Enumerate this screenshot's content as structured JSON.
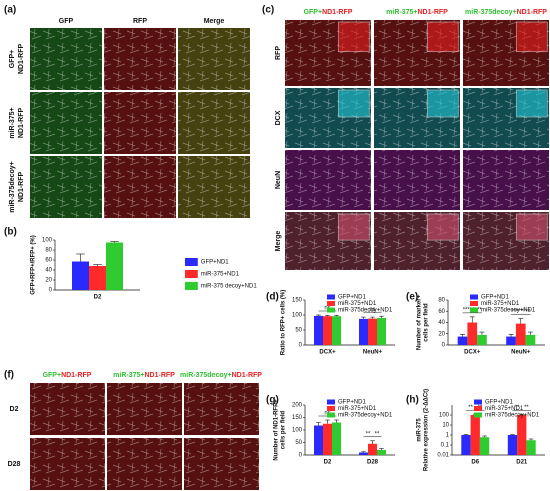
{
  "figure": {
    "a": {
      "label": "(a)",
      "columns": [
        "GFP",
        "RFP",
        "Merge"
      ],
      "rows": [
        [
          "GFP+",
          "ND1-RFP"
        ],
        [
          "miR-375+",
          "ND1-RFP"
        ],
        [
          "miR-375decoy+",
          "ND1-RFP"
        ]
      ]
    },
    "c": {
      "label": "(c)",
      "columns": [
        [
          "GFP+",
          "ND1-RFP"
        ],
        [
          "miR-375+",
          "ND1-RFP"
        ],
        [
          "miR-375decoy+",
          "ND1-RFP"
        ]
      ],
      "rows": [
        "RFP",
        "DCX",
        "NeuN",
        "Merge"
      ]
    },
    "f": {
      "label": "(f)",
      "columns": [
        [
          "GFP+",
          "ND1-RFP"
        ],
        [
          "miR-375+",
          "ND1-RFP"
        ],
        [
          "miR-375decoy+",
          "ND1-RFP"
        ]
      ],
      "rows": [
        "D2",
        "D28"
      ]
    }
  },
  "chart_data": [
    {
      "type": "bar",
      "label": "(b)",
      "ylabel": [
        "GFP+RFP+/RFP+ (%)"
      ],
      "categories": [
        "D2"
      ],
      "legend": "right",
      "ylim": [
        0,
        100
      ],
      "yticks": [
        0,
        20,
        40,
        60,
        80,
        100
      ],
      "series": [
        {
          "name": "GFP+ND1",
          "color": "#2a2aff",
          "values": [
            57
          ],
          "errors": [
            15
          ]
        },
        {
          "name": "miR-375+ND1",
          "color": "#ff2a2a",
          "values": [
            48
          ],
          "errors": [
            3
          ]
        },
        {
          "name": "miR-375 decoy+ND1",
          "color": "#2ecc2e",
          "values": [
            95
          ],
          "errors": [
            2
          ]
        }
      ]
    },
    {
      "type": "bar",
      "label": "(d)",
      "ylabel": [
        "Ratio to RFP+ cells (%)"
      ],
      "categories": [
        "DCX+",
        "NeuN+"
      ],
      "legend": "top",
      "ylim": [
        0,
        150
      ],
      "yticks": [
        0,
        50,
        100,
        150
      ],
      "annotations": [
        [
          "ns"
        ],
        [
          "ns"
        ]
      ],
      "series": [
        {
          "name": "GFP+ND1",
          "color": "#2a2aff",
          "values": [
            97,
            87
          ],
          "errors": [
            3,
            6
          ]
        },
        {
          "name": "miR-375+ND1",
          "color": "#ff2a2a",
          "values": [
            96,
            88
          ],
          "errors": [
            3,
            5
          ]
        },
        {
          "name": "miR-375decoy+ND1",
          "color": "#2ecc2e",
          "values": [
            96,
            90
          ],
          "errors": [
            3,
            6
          ]
        }
      ]
    },
    {
      "type": "bar",
      "label": "(e)",
      "ylabel": [
        "Number of marker+",
        "cells per field"
      ],
      "categories": [
        "DCX+",
        "NeuN+"
      ],
      "legend": "top",
      "ylim": [
        0,
        80
      ],
      "yticks": [
        0,
        20,
        40,
        60,
        80
      ],
      "annotations": [
        [
          "****",
          "****"
        ],
        [
          "****",
          "****"
        ]
      ],
      "series": [
        {
          "name": "GFP+ND1",
          "color": "#2a2aff",
          "values": [
            15,
            15
          ],
          "errors": [
            4,
            4
          ]
        },
        {
          "name": "miR-375+ND1",
          "color": "#ff2a2a",
          "values": [
            40,
            38
          ],
          "errors": [
            10,
            9
          ]
        },
        {
          "name": "miR-375decoy+ND1",
          "color": "#2ecc2e",
          "values": [
            18,
            18
          ],
          "errors": [
            5,
            5
          ]
        }
      ]
    },
    {
      "type": "bar",
      "label": "(g)",
      "ylabel": [
        "Number of ND1-RFP+",
        "cells per field"
      ],
      "categories": [
        "D2",
        "D28"
      ],
      "legend": "top",
      "ylim": [
        0,
        200
      ],
      "yticks": [
        0,
        50,
        100,
        150,
        200
      ],
      "annotations": [
        [
          "ns"
        ],
        [
          "**",
          "**"
        ]
      ],
      "series": [
        {
          "name": "GFP+ND1",
          "color": "#2a2aff",
          "values": [
            118,
            10
          ],
          "errors": [
            12,
            3
          ]
        },
        {
          "name": "miR-375+ND1",
          "color": "#ff2a2a",
          "values": [
            125,
            45
          ],
          "errors": [
            15,
            12
          ]
        },
        {
          "name": "miR-375decoy+ND1",
          "color": "#2ecc2e",
          "values": [
            130,
            20
          ],
          "errors": [
            10,
            6
          ]
        }
      ]
    },
    {
      "type": "bar",
      "label": "(h)",
      "ylabel": [
        "miR-375",
        "Relative expression (2-ΔΔCt)"
      ],
      "categories": [
        "D6",
        "D21"
      ],
      "legend": "top",
      "log_scale": true,
      "ylim": [
        0.01,
        1000
      ],
      "yticks": [
        0.01,
        0.1,
        1,
        10,
        100
      ],
      "annotations": [
        [
          "**",
          "**"
        ],
        [
          "**",
          "**"
        ]
      ],
      "series": [
        {
          "name": "GFP+ND1",
          "color": "#2a2aff",
          "values": [
            1,
            1
          ],
          "errors": [
            0.1,
            0.1
          ]
        },
        {
          "name": "miR-375+ND1",
          "color": "#ff2a2a",
          "values": [
            100,
            100
          ],
          "errors": [
            20,
            15
          ]
        },
        {
          "name": "miR-375decoy+ND1",
          "color": "#2ecc2e",
          "values": [
            0.6,
            0.3
          ],
          "errors": [
            0.2,
            0.1
          ]
        }
      ]
    }
  ]
}
